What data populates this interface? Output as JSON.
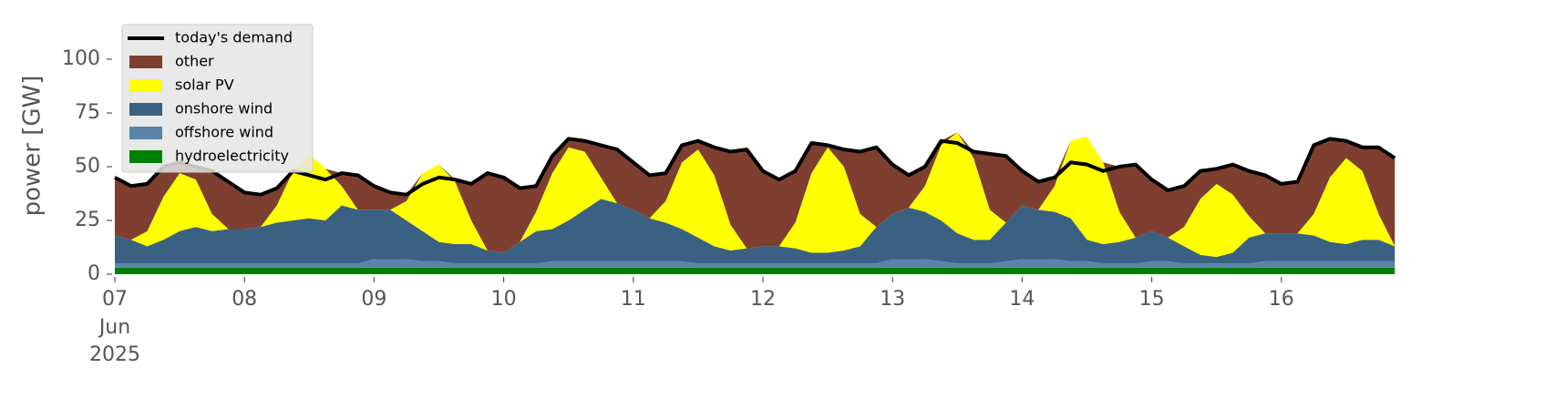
{
  "chart_data": {
    "type": "stacked_area",
    "ylabel": "power [GW]",
    "x": [
      7,
      7.125,
      7.25,
      7.375,
      7.5,
      7.625,
      7.75,
      7.875,
      8,
      8.125,
      8.25,
      8.375,
      8.5,
      8.625,
      8.75,
      8.875,
      9,
      9.125,
      9.25,
      9.375,
      9.5,
      9.625,
      9.75,
      9.875,
      10,
      10.125,
      10.25,
      10.375,
      10.5,
      10.625,
      10.75,
      10.875,
      11,
      11.125,
      11.25,
      11.375,
      11.5,
      11.625,
      11.75,
      11.875,
      12,
      12.125,
      12.25,
      12.375,
      12.5,
      12.625,
      12.75,
      12.875,
      13,
      13.125,
      13.25,
      13.375,
      13.5,
      13.625,
      13.75,
      13.875,
      14,
      14.125,
      14.25,
      14.375,
      14.5,
      14.625,
      14.75,
      14.875,
      15,
      15.125,
      15.25,
      15.375,
      15.5,
      15.625,
      15.75,
      15.875,
      16,
      16.125,
      16.25,
      16.375,
      16.5,
      16.625,
      16.75,
      16.875
    ],
    "xlim": [
      7,
      17
    ],
    "xticks": [
      {
        "value": 7,
        "label": "07"
      },
      {
        "value": 8,
        "label": "08"
      },
      {
        "value": 9,
        "label": "09"
      },
      10,
      11,
      12,
      13,
      14,
      15,
      16
    ],
    "x_date_label": [
      "Jun",
      "2025"
    ],
    "ylim": [
      0,
      115
    ],
    "yticks": [
      0,
      25,
      50,
      75,
      100
    ],
    "grid": false,
    "legend": "upper left",
    "series": [
      {
        "name": "today's demand",
        "color": "#000000",
        "kind": "line",
        "values": [
          45,
          41,
          42,
          50,
          52,
          50,
          48,
          43,
          38,
          37,
          40,
          48,
          46,
          44,
          47,
          46,
          41,
          38,
          37,
          42,
          45,
          44,
          42,
          47,
          45,
          40,
          41,
          55,
          63,
          62,
          60,
          58,
          52,
          46,
          47,
          60,
          62,
          59,
          57,
          58,
          48,
          44,
          48,
          61,
          60,
          58,
          57,
          59,
          51,
          46,
          50,
          62,
          61,
          57,
          56,
          55,
          48,
          43,
          45,
          52,
          51,
          48,
          50,
          51,
          44,
          39,
          41,
          48,
          49,
          51,
          48,
          46,
          42,
          43,
          60,
          63,
          62,
          59,
          59,
          54
        ]
      },
      {
        "name": "other",
        "color": "#7f3f30",
        "kind": "area",
        "values": [
          27,
          25,
          22,
          14,
          5,
          6,
          20,
          22,
          17,
          15,
          8,
          0,
          0,
          0,
          6,
          16,
          11,
          8,
          3,
          0,
          0,
          1,
          17,
          36,
          35,
          25,
          12,
          8,
          4,
          5,
          15,
          25,
          22,
          20,
          13,
          8,
          4,
          13,
          34,
          46,
          35,
          31,
          24,
          14,
          1,
          8,
          29,
          37,
          23,
          15,
          9,
          2,
          0,
          3,
          26,
          31,
          16,
          13,
          4,
          0,
          0,
          0,
          21,
          34,
          24,
          22,
          19,
          13,
          7,
          14,
          21,
          27,
          23,
          24,
          32,
          18,
          8,
          11,
          31,
          41
        ]
      },
      {
        "name": "solar PV",
        "color": "#ffff00",
        "kind": "area",
        "values": [
          0,
          0,
          7,
          20,
          27,
          22,
          8,
          0,
          0,
          0,
          8,
          23,
          30,
          24,
          9,
          0,
          0,
          0,
          9,
          27,
          36,
          29,
          11,
          0,
          0,
          0,
          9,
          26,
          34,
          27,
          10,
          0,
          0,
          0,
          10,
          31,
          41,
          33,
          12,
          0,
          0,
          0,
          12,
          37,
          49,
          39,
          15,
          0,
          0,
          0,
          12,
          35,
          47,
          38,
          14,
          0,
          0,
          0,
          12,
          36,
          48,
          38,
          14,
          0,
          0,
          0,
          9,
          26,
          34,
          27,
          10,
          0,
          0,
          0,
          10,
          30,
          40,
          32,
          12,
          0
        ]
      },
      {
        "name": "onshore wind",
        "color": "#3b6182",
        "kind": "area",
        "values": [
          13,
          11,
          8,
          11,
          15,
          17,
          15,
          16,
          16,
          17,
          19,
          20,
          21,
          20,
          27,
          25,
          23,
          23,
          18,
          14,
          9,
          9,
          9,
          6,
          5,
          10,
          15,
          15,
          19,
          24,
          29,
          27,
          24,
          20,
          18,
          15,
          12,
          8,
          6,
          7,
          8,
          8,
          7,
          5,
          5,
          6,
          8,
          17,
          21,
          24,
          22,
          19,
          14,
          11,
          11,
          18,
          25,
          23,
          22,
          20,
          10,
          9,
          10,
          12,
          14,
          11,
          8,
          4,
          3,
          5,
          12,
          13,
          13,
          13,
          12,
          9,
          8,
          10,
          10,
          7
        ]
      },
      {
        "name": "offshore wind",
        "color": "#5b84a8",
        "kind": "area",
        "values": [
          2,
          2,
          2,
          2,
          2,
          2,
          2,
          2,
          2,
          2,
          2,
          2,
          2,
          2,
          2,
          2,
          4,
          4,
          4,
          3,
          3,
          2,
          2,
          2,
          2,
          2,
          2,
          3,
          3,
          3,
          3,
          3,
          3,
          3,
          3,
          3,
          2,
          2,
          2,
          2,
          2,
          2,
          2,
          2,
          2,
          2,
          2,
          2,
          4,
          4,
          4,
          3,
          2,
          2,
          2,
          3,
          4,
          4,
          4,
          3,
          3,
          2,
          2,
          2,
          3,
          3,
          2,
          2,
          2,
          2,
          2,
          3,
          3,
          3,
          3,
          3,
          3,
          3,
          3,
          3
        ]
      },
      {
        "name": "hydroelectricity",
        "color": "#008000",
        "kind": "area",
        "values": [
          3,
          3,
          3,
          3,
          3,
          3,
          3,
          3,
          3,
          3,
          3,
          3,
          3,
          3,
          3,
          3,
          3,
          3,
          3,
          3,
          3,
          3,
          3,
          3,
          3,
          3,
          3,
          3,
          3,
          3,
          3,
          3,
          3,
          3,
          3,
          3,
          3,
          3,
          3,
          3,
          3,
          3,
          3,
          3,
          3,
          3,
          3,
          3,
          3,
          3,
          3,
          3,
          3,
          3,
          3,
          3,
          3,
          3,
          3,
          3,
          3,
          3,
          3,
          3,
          3,
          3,
          3,
          3,
          3,
          3,
          3,
          3,
          3,
          3,
          3,
          3,
          3,
          3,
          3,
          3
        ]
      }
    ]
  }
}
